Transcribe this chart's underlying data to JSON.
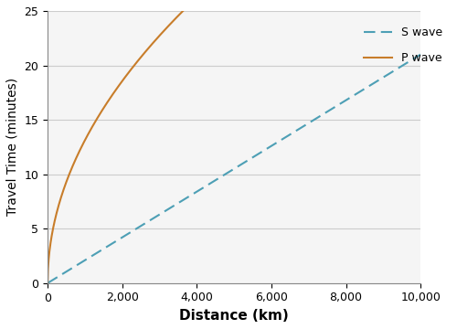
{
  "title": "",
  "xlabel": "Distance (km)",
  "ylabel": "Travel Time (minutes)",
  "xlim": [
    0,
    10000
  ],
  "ylim": [
    0,
    25
  ],
  "xticks": [
    0,
    2000,
    4000,
    6000,
    8000,
    10000
  ],
  "xtick_labels": [
    "0",
    "2,000",
    "4,000",
    "6,000",
    "8,000",
    "10,000"
  ],
  "yticks": [
    0,
    5,
    10,
    15,
    20,
    25
  ],
  "s_wave_color": "#4d9fb5",
  "p_wave_color": "#c87d2a",
  "background_color": "#ffffff",
  "plot_bg_color": "#f5f5f5",
  "legend_labels": [
    "S wave",
    "P wave"
  ],
  "xlabel_fontsize": 11,
  "ylabel_fontsize": 10,
  "tick_fontsize": 9,
  "legend_fontsize": 9,
  "s_wave_slope": 0.0021,
  "p_wave_scale": 0.415,
  "figsize": [
    5.0,
    3.6
  ],
  "dpi": 100
}
